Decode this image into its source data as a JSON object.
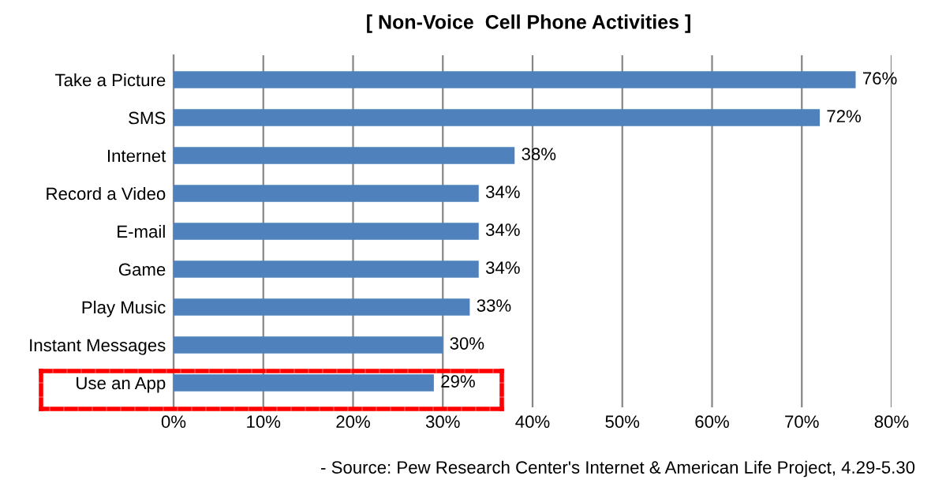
{
  "chart_data": {
    "type": "bar",
    "orientation": "horizontal",
    "title": "[ Non-Voice  Cell Phone Activities ]",
    "categories": [
      "Take a Picture",
      "SMS",
      "Internet",
      "Record a Video",
      "E-mail",
      "Game",
      "Play Music",
      "Instant Messages",
      "Use an App"
    ],
    "values": [
      76,
      72,
      38,
      34,
      34,
      34,
      33,
      30,
      29
    ],
    "value_labels": [
      "76%",
      "72%",
      "38%",
      "34%",
      "34%",
      "34%",
      "33%",
      "30%",
      "29%"
    ],
    "color": "#4f81bd",
    "xlim": [
      0,
      80
    ],
    "xticks": [
      {
        "value": 0,
        "label": "0%"
      },
      {
        "value": 10,
        "label": "10%"
      },
      {
        "value": 20,
        "label": "20%"
      },
      {
        "value": 30,
        "label": "30%"
      },
      {
        "value": 40,
        "label": "40%"
      },
      {
        "value": 50,
        "label": "50%"
      },
      {
        "value": 60,
        "label": "60%"
      },
      {
        "value": 70,
        "label": "70%"
      },
      {
        "value": 80,
        "label": "80%"
      }
    ],
    "grid": "x",
    "annotations": [
      "- Source: Pew Research Center's Internet & American Life Project, 4.29-5.30"
    ]
  }
}
